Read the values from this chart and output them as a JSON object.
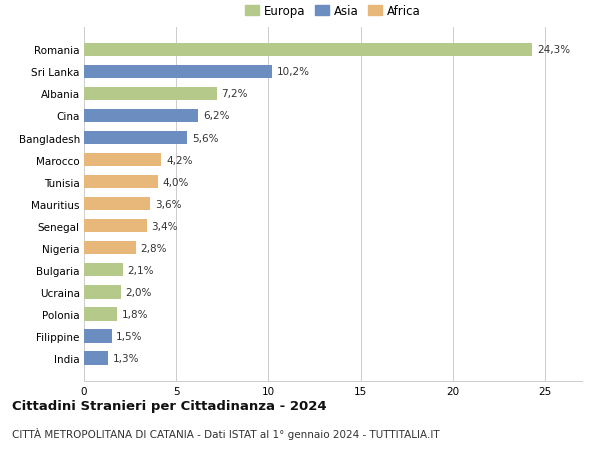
{
  "categories": [
    "Romania",
    "Sri Lanka",
    "Albania",
    "Cina",
    "Bangladesh",
    "Marocco",
    "Tunisia",
    "Mauritius",
    "Senegal",
    "Nigeria",
    "Bulgaria",
    "Ucraina",
    "Polonia",
    "Filippine",
    "India"
  ],
  "values": [
    24.3,
    10.2,
    7.2,
    6.2,
    5.6,
    4.2,
    4.0,
    3.6,
    3.4,
    2.8,
    2.1,
    2.0,
    1.8,
    1.5,
    1.3
  ],
  "labels": [
    "24,3%",
    "10,2%",
    "7,2%",
    "6,2%",
    "5,6%",
    "4,2%",
    "4,0%",
    "3,6%",
    "3,4%",
    "2,8%",
    "2,1%",
    "2,0%",
    "1,8%",
    "1,5%",
    "1,3%"
  ],
  "continents": [
    "Europa",
    "Asia",
    "Europa",
    "Asia",
    "Asia",
    "Africa",
    "Africa",
    "Africa",
    "Africa",
    "Africa",
    "Europa",
    "Europa",
    "Europa",
    "Asia",
    "Asia"
  ],
  "colors": {
    "Europa": "#b5c98a",
    "Asia": "#6b8dbf",
    "Africa": "#e8b87a"
  },
  "xlim": [
    0,
    27
  ],
  "xticks": [
    0,
    5,
    10,
    15,
    20,
    25
  ],
  "title": "Cittadini Stranieri per Cittadinanza - 2024",
  "subtitle": "CITTÀ METROPOLITANA DI CATANIA - Dati ISTAT al 1° gennaio 2024 - TUTTITALIA.IT",
  "title_fontsize": 9.5,
  "subtitle_fontsize": 7.5,
  "background_color": "#ffffff",
  "grid_color": "#cccccc",
  "label_fontsize": 7.5,
  "ytick_fontsize": 7.5,
  "bar_height": 0.6
}
